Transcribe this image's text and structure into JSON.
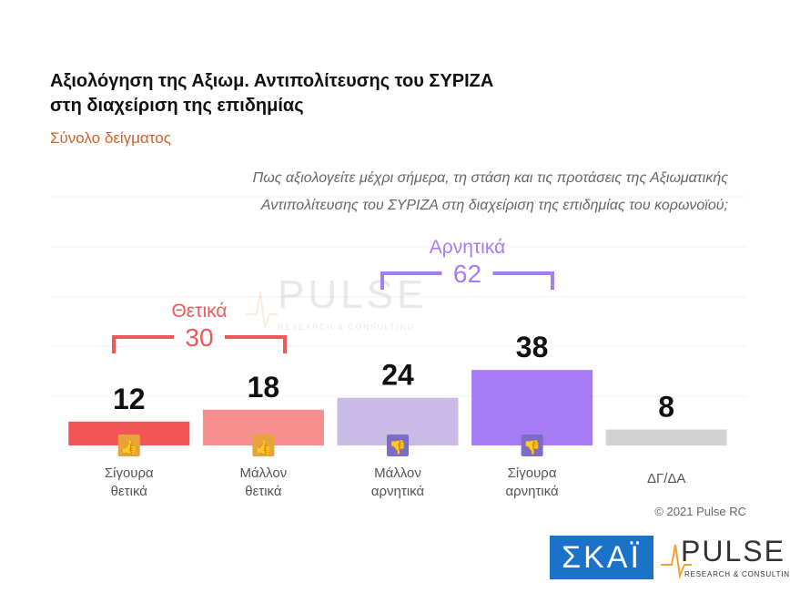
{
  "chart_data": {
    "type": "bar",
    "title": [
      "Αξιολόγηση της Αξιωμ. Αντιπολίτευσης του ΣΥΡΙΖΑ",
      "στη διαχείριση της επιδημίας"
    ],
    "subtitle": "Σύνολο δείγματος",
    "question": [
      "Πως αξιολογείτε  μέχρι σήμερα, τη στάση και τις προτάσεις της Αξιωματικής",
      "Αντιπολίτευσης του ΣΥΡΙΖΑ στη διαχείριση της επιδημίας του κορωνοϊού;"
    ],
    "categories": [
      "Σίγουρα θετικά",
      "Μάλλον θετικά",
      "Μάλλον αρνητικά",
      "Σίγουρα αρνητικά",
      "ΔΓ/ΔΑ"
    ],
    "values": [
      12,
      18,
      24,
      38,
      8
    ],
    "colors": [
      "#f05656",
      "#f58e8c",
      "#c8bce6",
      "#a67cf5",
      "#d2d2d2"
    ],
    "ylim": [
      0,
      100
    ],
    "groups": [
      {
        "label": "Θετικά",
        "value": 30,
        "color": "#ee5a5a"
      },
      {
        "label": "Αρνητικά",
        "value": 62,
        "color": "#a67cf5"
      }
    ],
    "credit": "© 2021 Pulse RC",
    "logos": {
      "skai": "ΣΚΑΪ",
      "pulse": "PULSE",
      "pulse_tagline": "RESEARCH & CONSULTING"
    }
  }
}
